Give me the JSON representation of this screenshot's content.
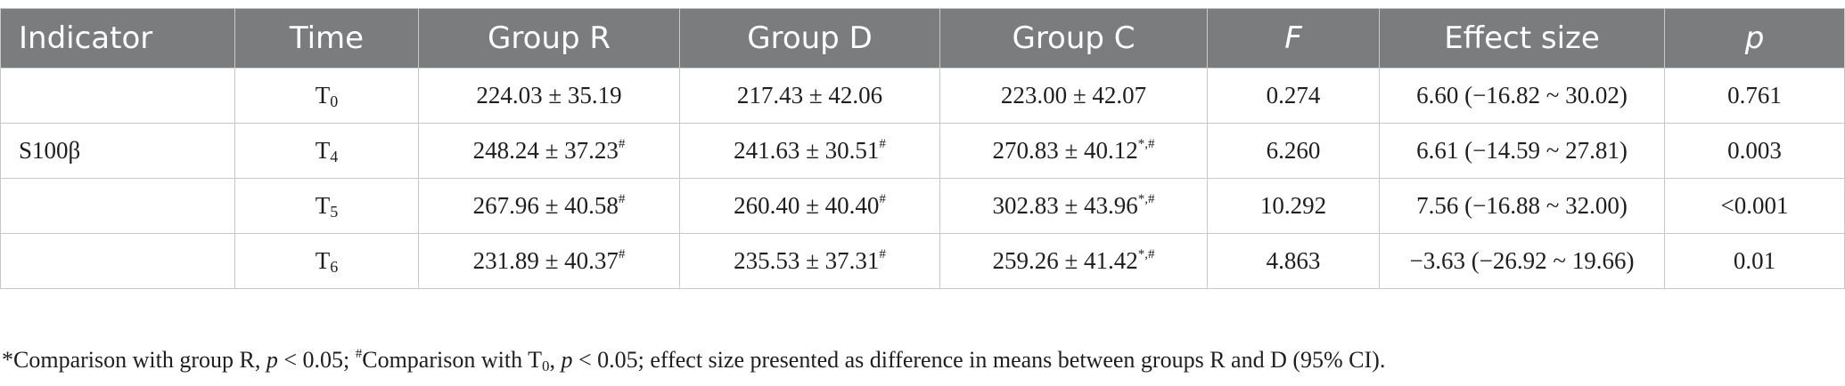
{
  "table": {
    "headers": [
      "Indicator",
      "Time",
      "Group R",
      "Group D",
      "Group C",
      "F",
      "Effect size",
      "p"
    ],
    "indicator": "S100β",
    "rows": [
      {
        "time_main": "T",
        "time_sub": "0",
        "r": "224.03 ± 35.19",
        "r_sup": "",
        "d": "217.43 ± 42.06",
        "d_sup": "",
        "c": "223.00 ± 42.07",
        "c_sup": "",
        "f": "0.274",
        "effect": "6.60 (−16.82 ~ 30.02)",
        "p": "0.761"
      },
      {
        "time_main": "T",
        "time_sub": "4",
        "r": "248.24 ± 37.23",
        "r_sup": "#",
        "d": "241.63 ± 30.51",
        "d_sup": "#",
        "c": "270.83 ± 40.12",
        "c_sup": "*,#",
        "f": "6.260",
        "effect": "6.61 (−14.59 ~ 27.81)",
        "p": "0.003"
      },
      {
        "time_main": "T",
        "time_sub": "5",
        "r": "267.96 ± 40.58",
        "r_sup": "#",
        "d": "260.40 ± 40.40",
        "d_sup": "#",
        "c": "302.83 ± 43.96",
        "c_sup": "*,#",
        "f": "10.292",
        "effect": "7.56 (−16.88 ~ 32.00)",
        "p": "<0.001"
      },
      {
        "time_main": "T",
        "time_sub": "6",
        "r": "231.89 ± 40.37",
        "r_sup": "#",
        "d": "235.53 ± 37.31",
        "d_sup": "#",
        "c": "259.26 ± 41.42",
        "c_sup": "*,#",
        "f": "4.863",
        "effect": "−3.63 (−26.92 ~ 19.66)",
        "p": "0.01"
      }
    ]
  },
  "footnote": {
    "star_mark": "*",
    "part1": "Comparison with group R, ",
    "p1": "p",
    "part2": " < 0.05; ",
    "hash_mark": "#",
    "part3": "Comparison with T",
    "t_sub": "0",
    "part4": ", ",
    "p2": "p",
    "part5": " < 0.05; effect size presented as difference in means between groups R and D (95% CI)."
  }
}
